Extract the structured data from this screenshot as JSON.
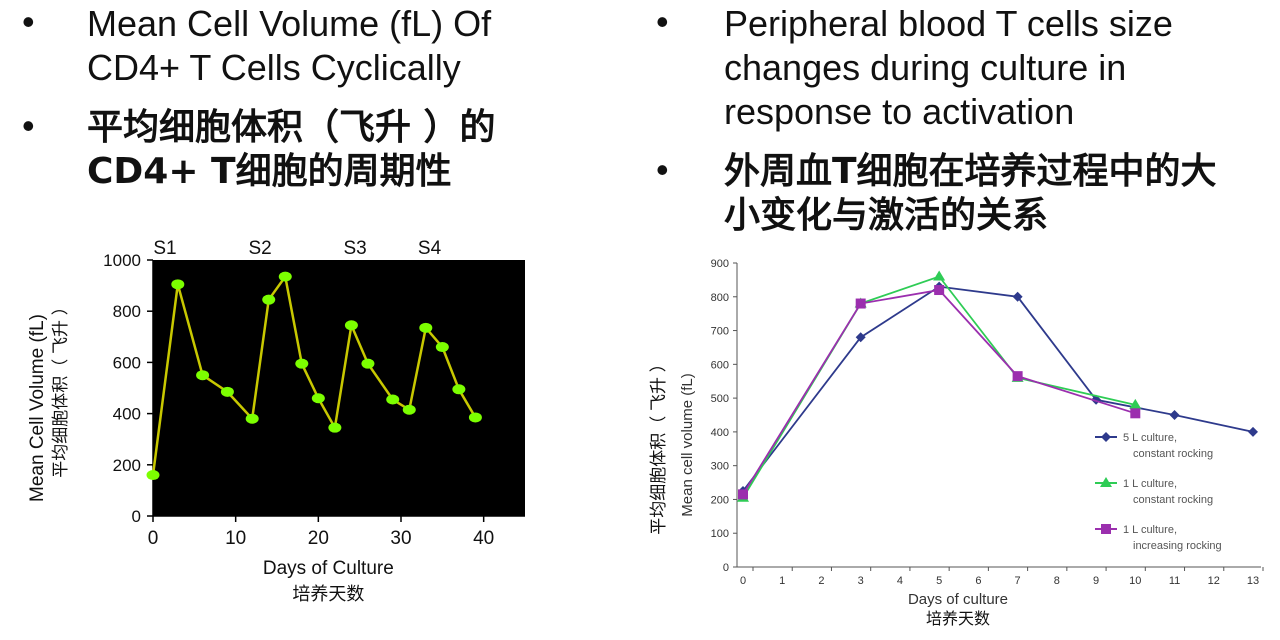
{
  "left_bullets": {
    "b1_line1": "Mean Cell Volume (fL) Of",
    "b1_line2": "CD4+ T Cells Cyclically",
    "b2_line1": "平均细胞体积（飞升 ）的",
    "b2_line2": "CD4+ T细胞的周期性"
  },
  "right_bullets": {
    "b1_line1": "Peripheral blood T cells size",
    "b1_line2": "changes during culture in",
    "b1_line3": "response to activation",
    "b2_line1": "外周血T细胞在培养过程中的大",
    "b2_line2": "小变化与激活的关系"
  },
  "bullet_symbol": "•",
  "chart_data": [
    {
      "type": "line",
      "title": "",
      "xlabel": "Days of Culture",
      "xlabel_cn": "培养天数",
      "ylabel": "Mean Cell Volume (fL)",
      "ylabel_cn": "平均细胞体积（ 飞升 ）",
      "xlim": [
        0,
        45
      ],
      "ylim": [
        0,
        1000
      ],
      "xticks": [
        0,
        10,
        20,
        30,
        40
      ],
      "yticks": [
        0,
        200,
        400,
        600,
        800,
        1000
      ],
      "top_labels": [
        {
          "text": "S1",
          "x": 0
        },
        {
          "text": "S2",
          "x": 11.5
        },
        {
          "text": "S3",
          "x": 23
        },
        {
          "text": "S4",
          "x": 32
        }
      ],
      "background": "#000000",
      "line_color": "#c8c800",
      "marker_color": "#7cff00",
      "series": [
        {
          "x": [
            0,
            3,
            6,
            9,
            12,
            14,
            16,
            18,
            20,
            22,
            24,
            26,
            29,
            31,
            33,
            35,
            37,
            39
          ],
          "values": [
            160,
            905,
            550,
            485,
            380,
            845,
            935,
            595,
            460,
            345,
            745,
            595,
            455,
            415,
            735,
            660,
            495,
            385
          ]
        }
      ]
    },
    {
      "type": "line",
      "title": "",
      "xlabel": "Days of culture",
      "xlabel_cn": "培养天数",
      "ylabel": "Mean cell volume (fL)",
      "ylabel_cn": "平均细胞体积（ 飞升 ）",
      "xlim": [
        0,
        13
      ],
      "ylim": [
        0,
        900
      ],
      "xticks": [
        0,
        1,
        2,
        3,
        4,
        5,
        6,
        7,
        8,
        9,
        10,
        11,
        12,
        13
      ],
      "yticks": [
        0,
        100,
        200,
        300,
        400,
        500,
        600,
        700,
        800,
        900
      ],
      "legend_position": "right",
      "series": [
        {
          "name": "5 L culture, constant rocking",
          "name_line1": "5 L culture,",
          "name_line2": "constant rocking",
          "color": "#2e3a8c",
          "marker": "diamond",
          "x": [
            0,
            3,
            5,
            7,
            9,
            11,
            13
          ],
          "values": [
            225,
            680,
            830,
            800,
            495,
            450,
            400
          ]
        },
        {
          "name": "1 L culture, constant rocking",
          "name_line1": "1 L culture,",
          "name_line2": "constant rocking",
          "color": "#2ecc55",
          "marker": "triangle",
          "x": [
            0,
            3,
            5,
            7,
            10
          ],
          "values": [
            205,
            780,
            860,
            560,
            480
          ]
        },
        {
          "name": "1 L culture, increasing rocking",
          "name_line1": "1 L culture,",
          "name_line2": "increasing rocking",
          "color": "#9b2fae",
          "marker": "square",
          "x": [
            0,
            3,
            5,
            7,
            10
          ],
          "values": [
            215,
            780,
            820,
            565,
            455
          ]
        }
      ]
    }
  ]
}
